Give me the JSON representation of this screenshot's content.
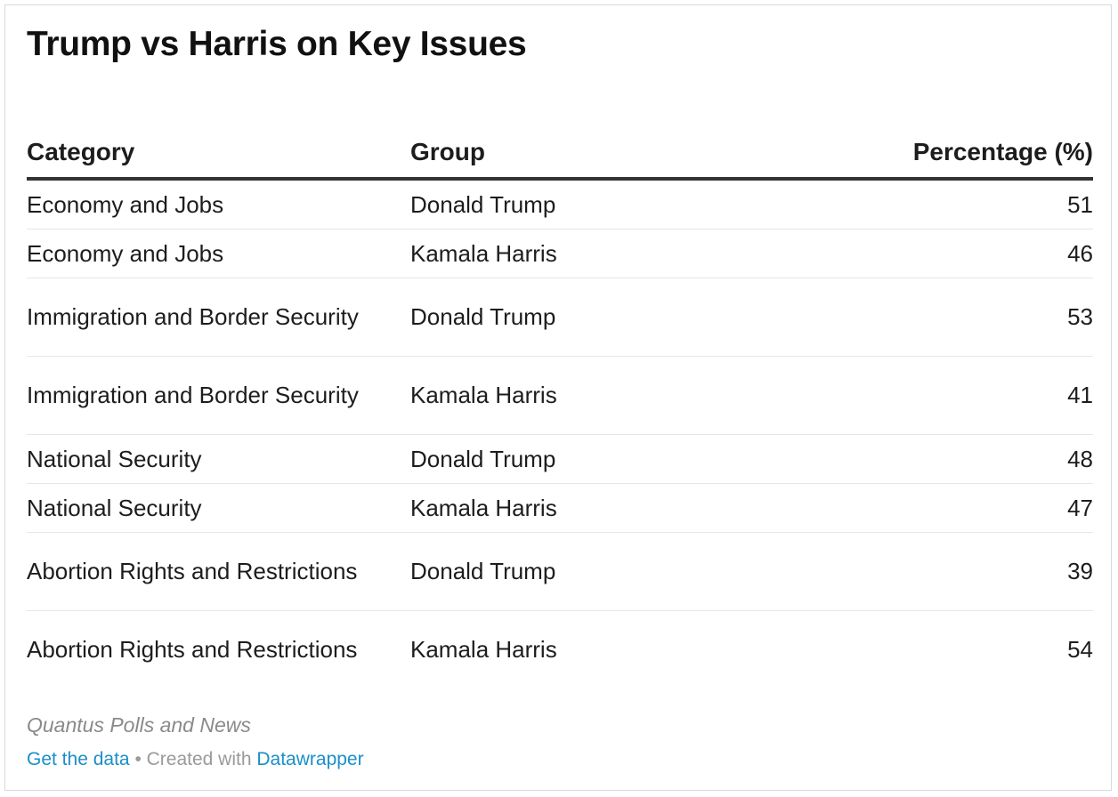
{
  "title": "Trump vs Harris on Key Issues",
  "chart_data": {
    "type": "table",
    "title": "Trump vs Harris on Key Issues",
    "columns": [
      "Category",
      "Group",
      "Percentage (%)"
    ],
    "rows": [
      {
        "category": "Economy and Jobs",
        "group": "Donald Trump",
        "value": 51
      },
      {
        "category": "Economy and Jobs",
        "group": "Kamala Harris",
        "value": 46
      },
      {
        "category": "Immigration and Border Security",
        "group": "Donald Trump",
        "value": 53
      },
      {
        "category": "Immigration and Border Security",
        "group": "Kamala Harris",
        "value": 41
      },
      {
        "category": "National Security",
        "group": "Donald Trump",
        "value": 48
      },
      {
        "category": "National Security",
        "group": "Kamala Harris",
        "value": 47
      },
      {
        "category": "Abortion Rights and Restrictions",
        "group": "Donald Trump",
        "value": 39
      },
      {
        "category": "Abortion Rights and Restrictions",
        "group": "Kamala Harris",
        "value": 54
      }
    ]
  },
  "notes": "Quantus Polls and News",
  "footer": {
    "get_data": "Get the data",
    "separator": "•",
    "created_with": "Created with",
    "tool": "Datawrapper"
  },
  "colors": {
    "link": "#1a8fc9",
    "header_rule": "#333333",
    "row_rule": "#e6e6e6"
  }
}
